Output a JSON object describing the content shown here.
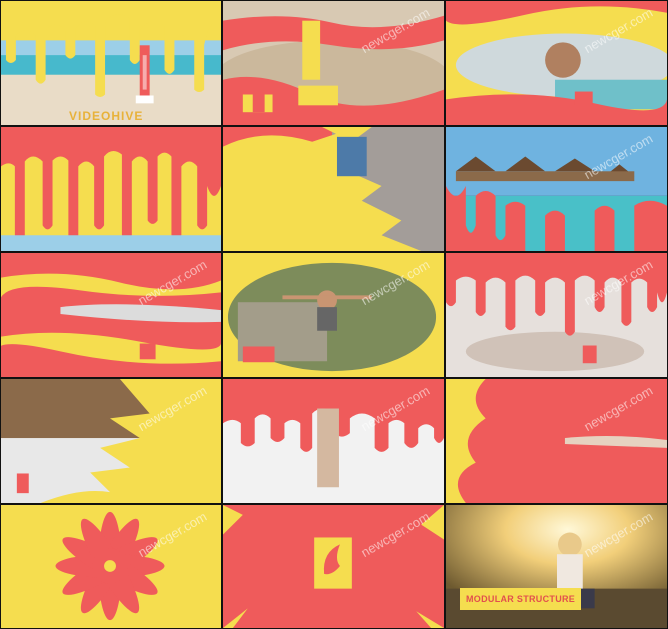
{
  "grid": {
    "colors": {
      "yellow": "#f5dd4f",
      "coral": "#ef5b5b",
      "sand": "#e9dcc7",
      "sea": "#47b9cc",
      "sky": "#9ccfe8"
    },
    "watermark": "newcger.com",
    "cells": [
      {
        "id": 1,
        "scene": "beach-drips",
        "caption": "VIDEOHIVE"
      },
      {
        "id": 2,
        "scene": "sand-toy"
      },
      {
        "id": 3,
        "scene": "woman-sea"
      },
      {
        "id": 4,
        "scene": "coral-drips"
      },
      {
        "id": 5,
        "scene": "yellow-splash-boardwalk"
      },
      {
        "id": 6,
        "scene": "bungalows"
      },
      {
        "id": 7,
        "scene": "coral-waves"
      },
      {
        "id": 8,
        "scene": "hiker"
      },
      {
        "id": 9,
        "scene": "bed-drips"
      },
      {
        "id": 10,
        "scene": "wave-splash"
      },
      {
        "id": 11,
        "scene": "coral-white-drips"
      },
      {
        "id": 12,
        "scene": "coral-yellow-waves"
      },
      {
        "id": 13,
        "scene": "flower-burst"
      },
      {
        "id": 14,
        "scene": "logo-splash"
      },
      {
        "id": 15,
        "scene": "sunset-woman",
        "caption": "MODULAR STRUCTURE"
      }
    ]
  }
}
